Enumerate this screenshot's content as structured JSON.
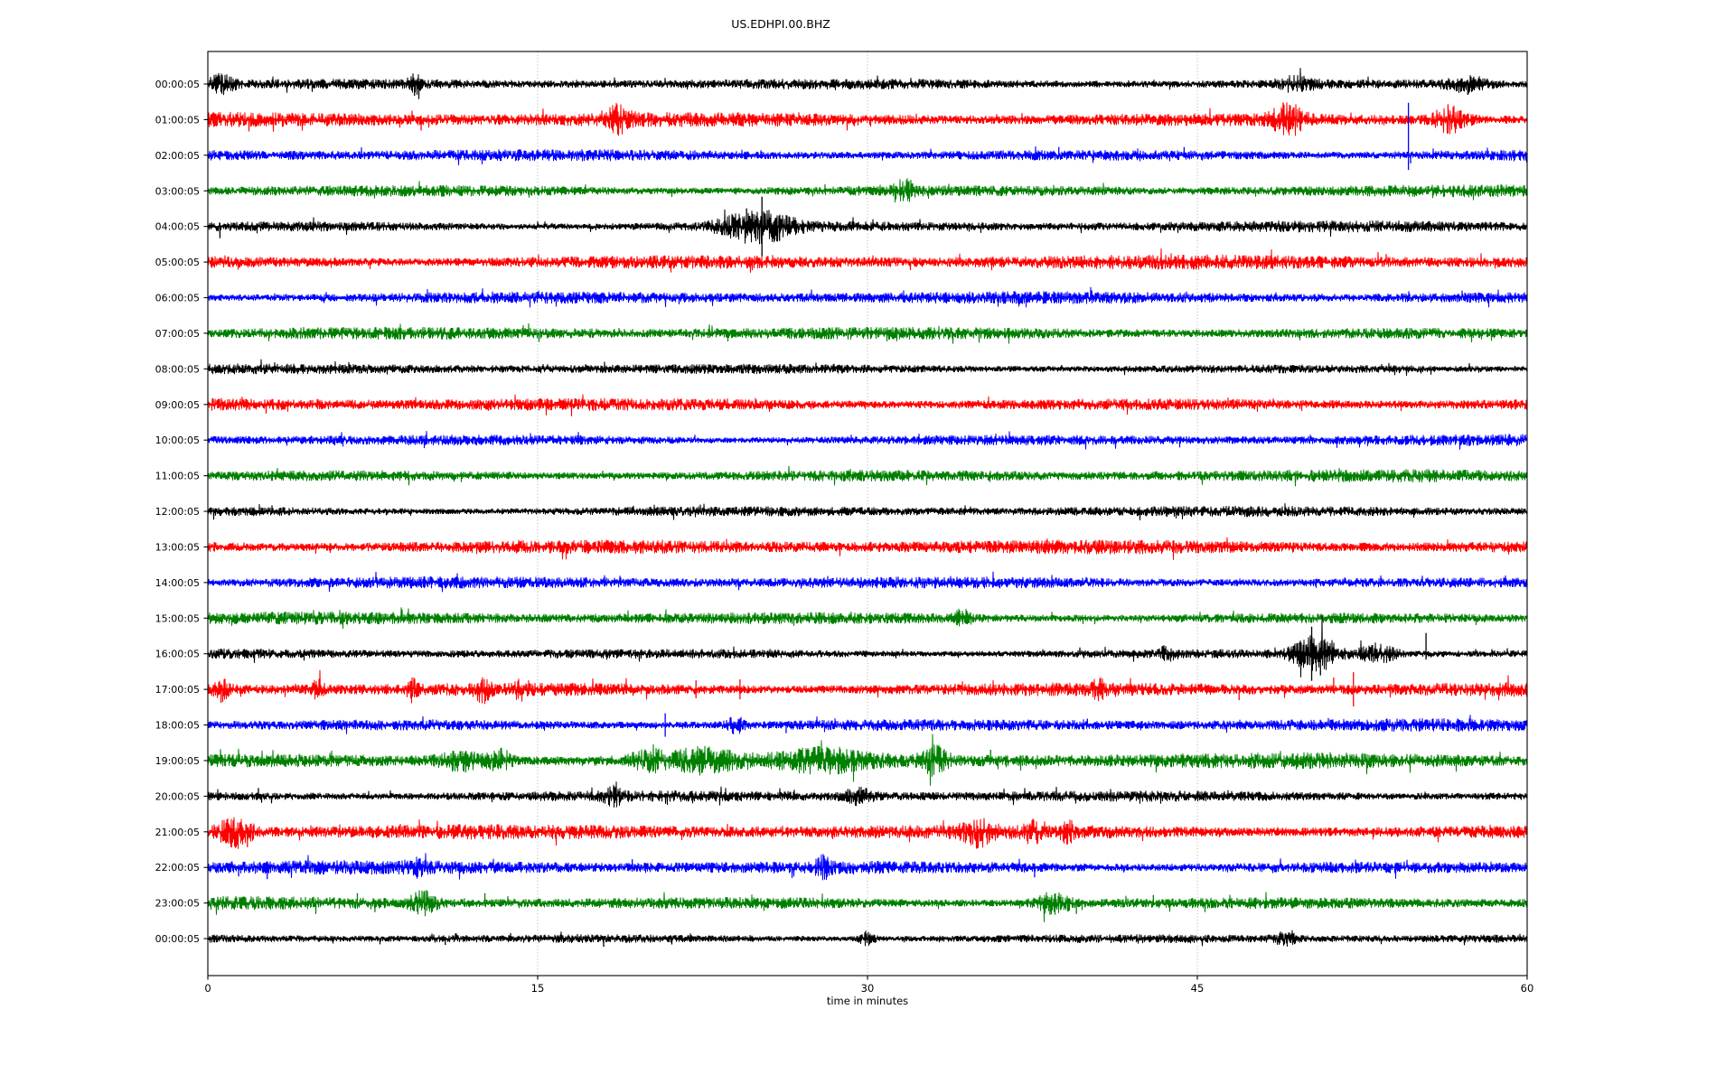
{
  "figure": {
    "title": "US.EDHPI.00.BHZ",
    "xlabel": "time in minutes",
    "background": "#ffffff"
  },
  "axis": {
    "xlim": [
      0,
      60
    ],
    "xticks": [
      0,
      15,
      30,
      45,
      60
    ],
    "grid_minutes": [
      15,
      30,
      45
    ],
    "grid_on": true,
    "grid_color": "#9a9a9a",
    "spine_color": "#000000",
    "tick_label_color": "#000000"
  },
  "chart_data": {
    "type": "line",
    "subtype": "seismogram_dayplot",
    "title": "US.EDHPI.00.BHZ",
    "xlabel": "time in minutes",
    "x_range_minutes": [
      0,
      60
    ],
    "x_ticks": [
      0,
      15,
      30,
      45,
      60
    ],
    "minutes_per_row": 60,
    "color_cycle": [
      "#000000",
      "#ff0000",
      "#0000ff",
      "#008000"
    ],
    "rows": [
      {
        "label": "00:00:05",
        "color": "#000000",
        "base_amp": 4.5,
        "events": [
          {
            "shape": "burst",
            "t": 0.6,
            "dur": 0.9,
            "amp": 8
          },
          {
            "shape": "spike",
            "t": 9.4,
            "amp": 13,
            "dir": "down"
          },
          {
            "shape": "burst",
            "t": 9.4,
            "dur": 0.4,
            "amp": 8
          },
          {
            "shape": "burst",
            "t": 49.5,
            "dur": 1.3,
            "amp": 6
          },
          {
            "shape": "burst",
            "t": 57.3,
            "dur": 1.4,
            "amp": 7
          },
          {
            "shape": "spike",
            "t": 57.3,
            "amp": 12,
            "dir": "down"
          }
        ]
      },
      {
        "label": "01:00:05",
        "color": "#ff0000",
        "base_amp": 6.5,
        "events": [
          {
            "shape": "spike",
            "t": 9.7,
            "amp": 12,
            "dir": "down"
          },
          {
            "shape": "burst",
            "t": 18.6,
            "dur": 0.9,
            "amp": 11
          },
          {
            "shape": "burst",
            "t": 49.1,
            "dur": 1.1,
            "amp": 14
          },
          {
            "shape": "spike",
            "t": 48.9,
            "amp": 19,
            "dir": "up"
          },
          {
            "shape": "burst",
            "t": 56.5,
            "dur": 1.2,
            "amp": 12
          },
          {
            "shape": "spike",
            "t": 56.4,
            "amp": 17,
            "dir": "up"
          }
        ]
      },
      {
        "label": "02:00:05",
        "color": "#0000ff",
        "base_amp": 5.5,
        "events": [
          {
            "shape": "spike",
            "t": 38.7,
            "amp": 9,
            "dir": "up"
          },
          {
            "shape": "spike",
            "t": 44.4,
            "amp": 9,
            "dir": "up"
          },
          {
            "shape": "spike",
            "t": 54.6,
            "amp": 58,
            "dir": "up"
          },
          {
            "shape": "spike",
            "t": 54.7,
            "amp": 9,
            "dir": "down"
          }
        ]
      },
      {
        "label": "03:00:05",
        "color": "#008000",
        "base_amp": 5.5,
        "events": [
          {
            "shape": "burst",
            "t": 31.7,
            "dur": 0.7,
            "amp": 9
          }
        ]
      },
      {
        "label": "04:00:05",
        "color": "#000000",
        "base_amp": 5.0,
        "events": [
          {
            "shape": "spike",
            "t": 0.55,
            "amp": 13,
            "dir": "down"
          },
          {
            "shape": "burst",
            "t": 25.0,
            "dur": 2.4,
            "amp": 16
          },
          {
            "shape": "spike",
            "t": 25.2,
            "amp": 33,
            "dir": "both"
          },
          {
            "shape": "spike",
            "t": 24.5,
            "amp": 20,
            "dir": "up"
          },
          {
            "shape": "spike",
            "t": 26.0,
            "amp": 16,
            "dir": "down"
          }
        ]
      },
      {
        "label": "05:00:05",
        "color": "#ff0000",
        "base_amp": 6.3,
        "events": []
      },
      {
        "label": "06:00:05",
        "color": "#0000ff",
        "base_amp": 5.4,
        "events": [
          {
            "shape": "spike",
            "t": 40.2,
            "amp": 8,
            "dir": "up"
          }
        ]
      },
      {
        "label": "07:00:05",
        "color": "#008000",
        "base_amp": 5.5,
        "events": []
      },
      {
        "label": "08:00:05",
        "color": "#000000",
        "base_amp": 4.5,
        "events": []
      },
      {
        "label": "09:00:05",
        "color": "#ff0000",
        "base_amp": 6.0,
        "events": []
      },
      {
        "label": "10:00:05",
        "color": "#0000ff",
        "base_amp": 5.2,
        "events": []
      },
      {
        "label": "11:00:05",
        "color": "#008000",
        "base_amp": 5.5,
        "events": []
      },
      {
        "label": "12:00:05",
        "color": "#000000",
        "base_amp": 4.6,
        "events": []
      },
      {
        "label": "13:00:05",
        "color": "#ff0000",
        "base_amp": 6.2,
        "events": []
      },
      {
        "label": "14:00:05",
        "color": "#0000ff",
        "base_amp": 5.2,
        "events": []
      },
      {
        "label": "15:00:05",
        "color": "#008000",
        "base_amp": 5.5,
        "events": [
          {
            "shape": "burst",
            "t": 34.3,
            "dur": 0.5,
            "amp": 7
          }
        ]
      },
      {
        "label": "16:00:05",
        "color": "#000000",
        "base_amp": 4.6,
        "events": [
          {
            "shape": "burst",
            "t": 43.6,
            "dur": 0.5,
            "amp": 6
          },
          {
            "shape": "burst",
            "t": 50.4,
            "dur": 1.5,
            "amp": 20
          },
          {
            "shape": "spike",
            "t": 50.2,
            "amp": 30,
            "dir": "both"
          },
          {
            "shape": "spike",
            "t": 50.6,
            "amp": 24,
            "dir": "down"
          },
          {
            "shape": "burst",
            "t": 53.2,
            "dur": 1.2,
            "amp": 10
          },
          {
            "shape": "spike",
            "t": 55.4,
            "amp": 23,
            "dir": "up"
          }
        ]
      },
      {
        "label": "17:00:05",
        "color": "#ff0000",
        "base_amp": 6.6,
        "events": [
          {
            "shape": "spike",
            "t": 0.6,
            "amp": 15,
            "dir": "down"
          },
          {
            "shape": "burst",
            "t": 0.6,
            "dur": 0.5,
            "amp": 10
          },
          {
            "shape": "burst",
            "t": 5.0,
            "dur": 0.4,
            "amp": 8
          },
          {
            "shape": "burst",
            "t": 9.3,
            "dur": 0.4,
            "amp": 8
          },
          {
            "shape": "burst",
            "t": 12.5,
            "dur": 0.5,
            "amp": 10
          },
          {
            "shape": "burst",
            "t": 14.2,
            "dur": 0.3,
            "amp": 9
          },
          {
            "shape": "spike",
            "t": 22.2,
            "amp": 10,
            "dir": "both"
          },
          {
            "shape": "spike",
            "t": 24.2,
            "amp": 11,
            "dir": "both"
          },
          {
            "shape": "burst",
            "t": 40.5,
            "dur": 0.4,
            "amp": 8
          },
          {
            "shape": "spike",
            "t": 46.9,
            "amp": 12,
            "dir": "down"
          },
          {
            "shape": "spike",
            "t": 51.2,
            "amp": 13,
            "dir": "up"
          },
          {
            "shape": "spike",
            "t": 52.1,
            "amp": 19,
            "dir": "both"
          }
        ]
      },
      {
        "label": "18:00:05",
        "color": "#0000ff",
        "base_amp": 5.5,
        "events": [
          {
            "shape": "spike",
            "t": 20.8,
            "amp": 13,
            "dir": "both"
          },
          {
            "shape": "burst",
            "t": 24.0,
            "dur": 0.6,
            "amp": 7
          },
          {
            "shape": "spike",
            "t": 26.3,
            "amp": 9,
            "dir": "down"
          },
          {
            "shape": "spike",
            "t": 40.0,
            "amp": 7,
            "dir": "up"
          }
        ]
      },
      {
        "label": "19:00:05",
        "color": "#008000",
        "base_amp": 6.8,
        "events": [
          {
            "shape": "burst",
            "t": 11.5,
            "dur": 1.5,
            "amp": 9
          },
          {
            "shape": "burst",
            "t": 13.3,
            "dur": 0.8,
            "amp": 10
          },
          {
            "shape": "burst",
            "t": 20.0,
            "dur": 1.2,
            "amp": 9
          },
          {
            "shape": "burst",
            "t": 22.5,
            "dur": 2.0,
            "amp": 10
          },
          {
            "shape": "burst",
            "t": 28.0,
            "dur": 3.0,
            "amp": 8
          },
          {
            "shape": "spike",
            "t": 29.4,
            "amp": 12,
            "dir": "down"
          },
          {
            "shape": "burst",
            "t": 33.1,
            "dur": 0.9,
            "amp": 12
          },
          {
            "shape": "spike",
            "t": 33.2,
            "amp": 15,
            "dir": "up"
          },
          {
            "shape": "spike",
            "t": 35.6,
            "amp": 12,
            "dir": "up"
          }
        ]
      },
      {
        "label": "20:00:05",
        "color": "#000000",
        "base_amp": 4.8,
        "events": [
          {
            "shape": "spike",
            "t": 2.3,
            "amp": 9,
            "dir": "up"
          },
          {
            "shape": "burst",
            "t": 18.5,
            "dur": 0.7,
            "amp": 7
          },
          {
            "shape": "burst",
            "t": 29.6,
            "dur": 1.0,
            "amp": 7
          }
        ]
      },
      {
        "label": "21:00:05",
        "color": "#ff0000",
        "base_amp": 6.5,
        "events": [
          {
            "shape": "burst",
            "t": 1.2,
            "dur": 1.3,
            "amp": 13
          },
          {
            "shape": "spike",
            "t": 1.8,
            "amp": 17,
            "dir": "down"
          },
          {
            "shape": "burst",
            "t": 35.0,
            "dur": 1.0,
            "amp": 11
          },
          {
            "shape": "burst",
            "t": 37.5,
            "dur": 0.5,
            "amp": 9
          },
          {
            "shape": "burst",
            "t": 39.1,
            "dur": 0.4,
            "amp": 9
          }
        ]
      },
      {
        "label": "22:00:05",
        "color": "#0000ff",
        "base_amp": 6.0,
        "events": [
          {
            "shape": "spike",
            "t": 1.4,
            "amp": 10,
            "dir": "down"
          },
          {
            "shape": "spike",
            "t": 2.7,
            "amp": 13,
            "dir": "down"
          },
          {
            "shape": "burst",
            "t": 9.4,
            "dur": 0.5,
            "amp": 8
          },
          {
            "shape": "spike",
            "t": 19.3,
            "amp": 9,
            "dir": "up"
          },
          {
            "shape": "burst",
            "t": 28.0,
            "dur": 0.5,
            "amp": 8
          },
          {
            "shape": "spike",
            "t": 37.6,
            "amp": 11,
            "dir": "down"
          }
        ]
      },
      {
        "label": "23:00:05",
        "color": "#008000",
        "base_amp": 5.8,
        "events": [
          {
            "shape": "spike",
            "t": 6.8,
            "amp": 11,
            "dir": "up"
          },
          {
            "shape": "spike",
            "t": 7.6,
            "amp": 10,
            "dir": "down"
          },
          {
            "shape": "burst",
            "t": 9.8,
            "dur": 0.9,
            "amp": 10
          },
          {
            "shape": "spike",
            "t": 12.6,
            "amp": 11,
            "dir": "up"
          },
          {
            "shape": "burst",
            "t": 38.5,
            "dur": 1.3,
            "amp": 10
          },
          {
            "shape": "spike",
            "t": 38.3,
            "amp": 13,
            "dir": "down"
          },
          {
            "shape": "spike",
            "t": 39.5,
            "amp": 12,
            "dir": "down"
          },
          {
            "shape": "spike",
            "t": 43.0,
            "amp": 9,
            "dir": "up"
          }
        ]
      },
      {
        "label": "00:00:05",
        "color": "#000000",
        "base_amp": 4.3,
        "events": [
          {
            "shape": "spike",
            "t": 10.8,
            "amp": 7,
            "dir": "down"
          },
          {
            "shape": "spike",
            "t": 18.0,
            "amp": 9,
            "dir": "down"
          },
          {
            "shape": "burst",
            "t": 30.0,
            "dur": 0.6,
            "amp": 6
          },
          {
            "shape": "burst",
            "t": 49.0,
            "dur": 0.8,
            "amp": 5
          }
        ]
      }
    ]
  }
}
